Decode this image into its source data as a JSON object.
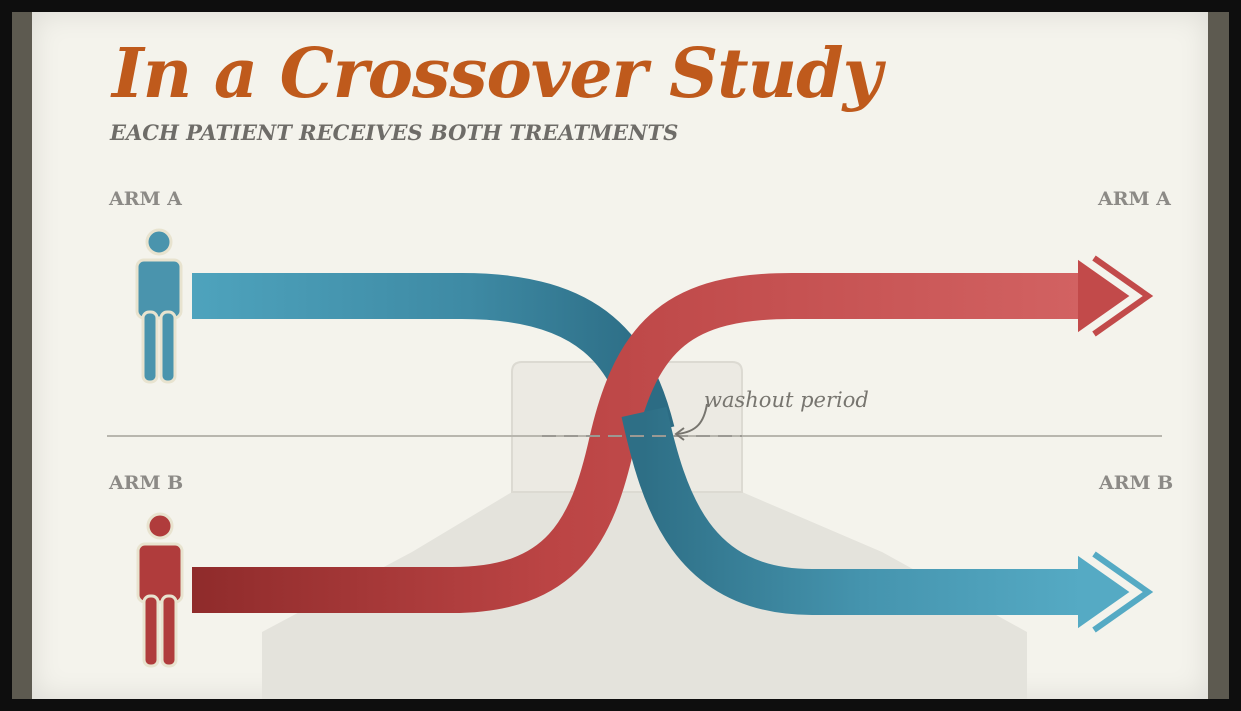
{
  "title": "In a Crossover Study",
  "subtitle": "EACH PATIENT RECEIVES BOTH TREATMENTS",
  "arms": {
    "a_left": "ARM A",
    "a_right": "ARM A",
    "b_left": "ARM B",
    "b_right": "ARM B"
  },
  "annotation": "washout period",
  "colors": {
    "treatment_blue": "#3f8fa8",
    "treatment_red": "#c24a4a",
    "title_orange": "#bf5a1c",
    "paper": "#f4f3ec"
  }
}
